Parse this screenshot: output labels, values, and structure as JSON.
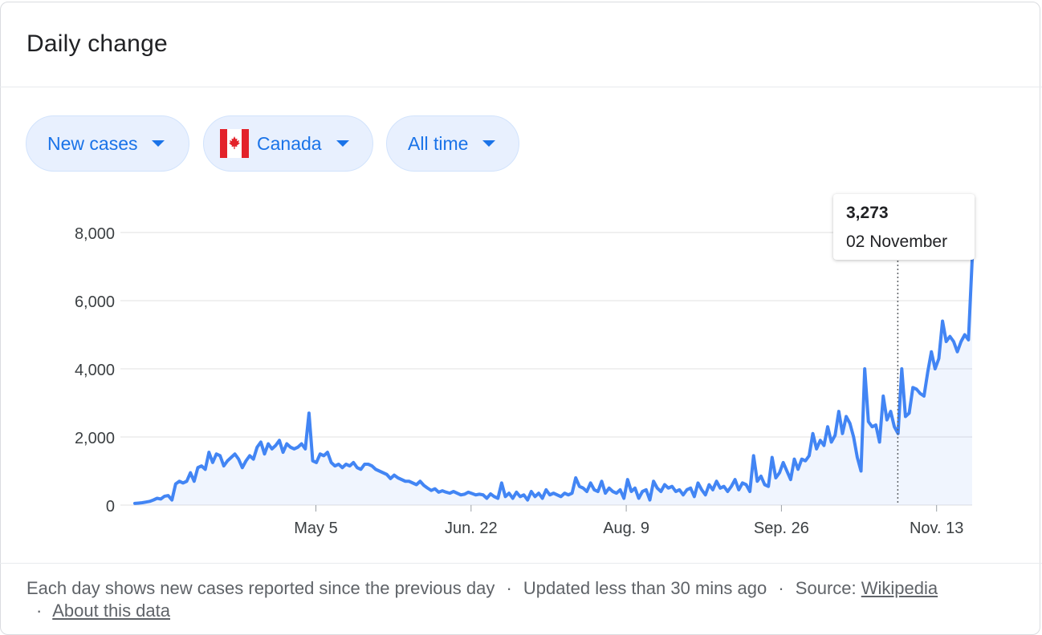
{
  "card": {
    "title": "Daily change"
  },
  "filters": [
    {
      "label": "New cases"
    },
    {
      "label": "Canada",
      "flag_icon": "canada-flag-icon"
    },
    {
      "label": "All time"
    }
  ],
  "tooltip": {
    "value": "3,273",
    "date": "02 November"
  },
  "footer": {
    "note": "Each day shows new cases reported since the previous day",
    "separator": "·",
    "updated": "Updated less than 30 mins ago",
    "source_label": "Source:",
    "source_link": "Wikipedia",
    "about_link": "About this data"
  },
  "colors": {
    "line": "#4285f4",
    "accent": "#1a73e8",
    "chip_bg": "#e8f0fe"
  },
  "chart_data": {
    "type": "line",
    "title": "",
    "xlabel": "",
    "ylabel": "",
    "ylim": [
      0,
      8000
    ],
    "yticks": [
      0,
      2000,
      4000,
      6000,
      8000
    ],
    "ytick_labels": [
      "0",
      "2,000",
      "4,000",
      "6,000",
      "8,000"
    ],
    "xtick_labels": [
      "May 5",
      "Jun. 22",
      "Aug. 9",
      "Sep. 26",
      "Nov. 13"
    ],
    "xticks_day_index": [
      0,
      48,
      96,
      144,
      192
    ],
    "x_range_day_index": [
      -56,
      203
    ],
    "grid": true,
    "highlight_day_index": [
      180
    ],
    "series": [
      {
        "name": "",
        "values": [
          50,
          60,
          70,
          90,
          110,
          150,
          200,
          180,
          260,
          280,
          150,
          620,
          700,
          650,
          700,
          950,
          700,
          1100,
          1150,
          1050,
          1550,
          1250,
          1500,
          1450,
          1150,
          1300,
          1400,
          1500,
          1350,
          1100,
          1300,
          1450,
          1350,
          1700,
          1850,
          1500,
          1800,
          1650,
          1750,
          1900,
          1550,
          1800,
          1700,
          1650,
          1700,
          1800,
          1650,
          2700,
          1300,
          1250,
          1500,
          1450,
          1550,
          1250,
          1150,
          1200,
          1100,
          1200,
          1150,
          1250,
          1100,
          1050,
          1200,
          1200,
          1150,
          1050,
          1000,
          950,
          900,
          780,
          880,
          800,
          750,
          700,
          700,
          650,
          600,
          700,
          580,
          500,
          430,
          480,
          380,
          420,
          380,
          350,
          400,
          350,
          300,
          320,
          380,
          340,
          300,
          320,
          300,
          200,
          330,
          250,
          200,
          650,
          250,
          350,
          200,
          380,
          250,
          300,
          150,
          400,
          250,
          350,
          200,
          450,
          300,
          350,
          300,
          250,
          350,
          300,
          350,
          800,
          550,
          500,
          400,
          650,
          450,
          400,
          700,
          350,
          500,
          400,
          350,
          450,
          200,
          750,
          400,
          500,
          200,
          400,
          450,
          150,
          700,
          500,
          400,
          600,
          500,
          550,
          400,
          450,
          300,
          450,
          500,
          250,
          650,
          450,
          300,
          600,
          450,
          700,
          500,
          550,
          400,
          550,
          750,
          450,
          650,
          600,
          400,
          1450,
          700,
          850,
          600,
          550,
          1400,
          800,
          950,
          1250,
          1000,
          750,
          1350,
          1050,
          1350,
          1300,
          1450,
          2100,
          1650,
          1900,
          1750,
          2300,
          1850,
          2050,
          2750,
          2100,
          2600,
          2400,
          2000,
          1400,
          1000,
          4000,
          2450,
          2300,
          2350,
          1850,
          3200,
          2500,
          2750,
          2300,
          2100,
          4000,
          2600,
          2700,
          3450,
          3400,
          3273,
          3200,
          3900,
          4500,
          4000,
          4300,
          5400,
          4800,
          4950,
          4800,
          4500,
          4800,
          5000,
          4850,
          7200
        ]
      }
    ]
  }
}
